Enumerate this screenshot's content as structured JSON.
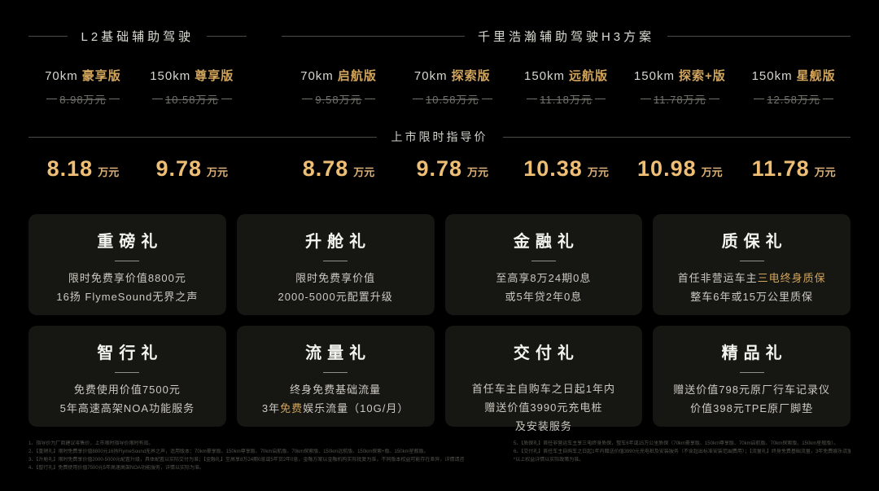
{
  "colors": {
    "background": "#000000",
    "card_background": "#161613",
    "accent_gold": "#d2a55c",
    "price_gold": "#eebe74",
    "body_text": "#ccc9c1",
    "muted_text": "#73736c"
  },
  "price_banner": {
    "label": "上市限时指导价"
  },
  "sections": [
    {
      "title": "L2基础辅助驾驶",
      "variants": [
        {
          "range": "70km",
          "trim": "豪享版",
          "original_price": "8.98万元",
          "launch_price": "8.18",
          "launch_unit": "万元"
        },
        {
          "range": "150km",
          "trim": "尊享版",
          "original_price": "10.58万元",
          "launch_price": "9.78",
          "launch_unit": "万元"
        }
      ]
    },
    {
      "title": "千里浩瀚辅助驾驶H3方案",
      "variants": [
        {
          "range": "70km",
          "trim": "启航版",
          "original_price": "9.58万元",
          "launch_price": "8.78",
          "launch_unit": "万元"
        },
        {
          "range": "70km",
          "trim": "探索版",
          "original_price": "10.58万元",
          "launch_price": "9.78",
          "launch_unit": "万元"
        },
        {
          "range": "150km",
          "trim": "远航版",
          "original_price": "11.18万元",
          "launch_price": "10.38",
          "launch_unit": "万元"
        },
        {
          "range": "150km",
          "trim": "探索+版",
          "original_price": "11.78万元",
          "launch_price": "10.98",
          "launch_unit": "万元"
        },
        {
          "range": "150km",
          "trim": "星舰版",
          "original_price": "12.58万元",
          "launch_price": "11.78",
          "launch_unit": "万元"
        }
      ]
    }
  ],
  "gift_cards": [
    {
      "title": "重磅礼",
      "lines": [
        [
          {
            "text": "限时免费享价值8800元",
            "gold": false
          }
        ],
        [
          {
            "text": "16扬 FlymeSound无界之声",
            "gold": false
          }
        ]
      ]
    },
    {
      "title": "升舱礼",
      "lines": [
        [
          {
            "text": "限时免费享价值",
            "gold": false
          }
        ],
        [
          {
            "text": "2000-5000元配置升级",
            "gold": false
          }
        ]
      ]
    },
    {
      "title": "金融礼",
      "lines": [
        [
          {
            "text": "至高享8万24期0息",
            "gold": false
          }
        ],
        [
          {
            "text": "或5年贷2年0息",
            "gold": false
          }
        ]
      ]
    },
    {
      "title": "质保礼",
      "lines": [
        [
          {
            "text": "首任非营运车主",
            "gold": false
          },
          {
            "text": "三电终身质保",
            "gold": true
          }
        ],
        [
          {
            "text": "整车6年或15万公里质保",
            "gold": false
          }
        ]
      ]
    },
    {
      "title": "智行礼",
      "lines": [
        [
          {
            "text": "免费使用价值7500元",
            "gold": false
          }
        ],
        [
          {
            "text": "5年高速高架NOA功能服务",
            "gold": false
          }
        ]
      ]
    },
    {
      "title": "流量礼",
      "lines": [
        [
          {
            "text": "终身免费基础流量",
            "gold": false
          }
        ],
        [
          {
            "text": "3年",
            "gold": false
          },
          {
            "text": "免费",
            "gold": true
          },
          {
            "text": "娱乐流量（10G/月）",
            "gold": false
          }
        ]
      ]
    },
    {
      "title": "交付礼",
      "lines": [
        [
          {
            "text": "首任车主自购车之日起1年内",
            "gold": false
          }
        ],
        [
          {
            "text": "赠送价值3990元充电桩",
            "gold": false
          }
        ],
        [
          {
            "text": "及安装服务",
            "gold": false
          }
        ]
      ]
    },
    {
      "title": "精品礼",
      "lines": [
        [
          {
            "text": "赠送价值798元原厂行车记录仪",
            "gold": false
          }
        ],
        [
          {
            "text": "价值398元TPE原厂脚垫",
            "gold": false
          }
        ]
      ]
    }
  ],
  "fine_print": {
    "left": [
      "1、指导价为厂商建议零售价，上市限时指导价限时有效。",
      "2、【重磅礼】限时免费享价值8800元16扬FlymeSound无界之声，适用版本：70km豪享版、150km尊享版、70km启航版、70km探索版、150km远航版、150km探索+版、150km星舰版。",
      "3、【升舱礼】限时免费享价值2000-5000元配置升级，具体配置以实际交付为准；【金融礼】至高享8万24期0息或5年贷2年0息，金融方案以金融机构实际批复为准，不同版本权益可能存在差异，详情请咨询当地经销商（70km探索版、150km远航版、150km探索+版、150km星舰版）。",
      "4、【智行礼】免费使用价值7500元5年高速高架NOA功能服务，详情以实际为准。"
    ],
    "right": [
      "5、【质保礼】首任非营运车主享三电终身质保，整车6年或15万公里质保（70km豪享版、150km尊享版、70km启航版、70km探索版、150km星舰版）。",
      "6、【交付礼】首任车主自购车之日起1年内赠送价值3990元充电桩及安装服务（不含超出标准安装范围费用）；【流量礼】终身免费基础流量，3年免费娱乐流量（10G/月），权益不可转让、折现；【精品礼】赠送价值798元原厂行车记录仪及价值398元TPE原厂脚垫，",
      "*以上权益详情以实际政策为准。"
    ]
  }
}
